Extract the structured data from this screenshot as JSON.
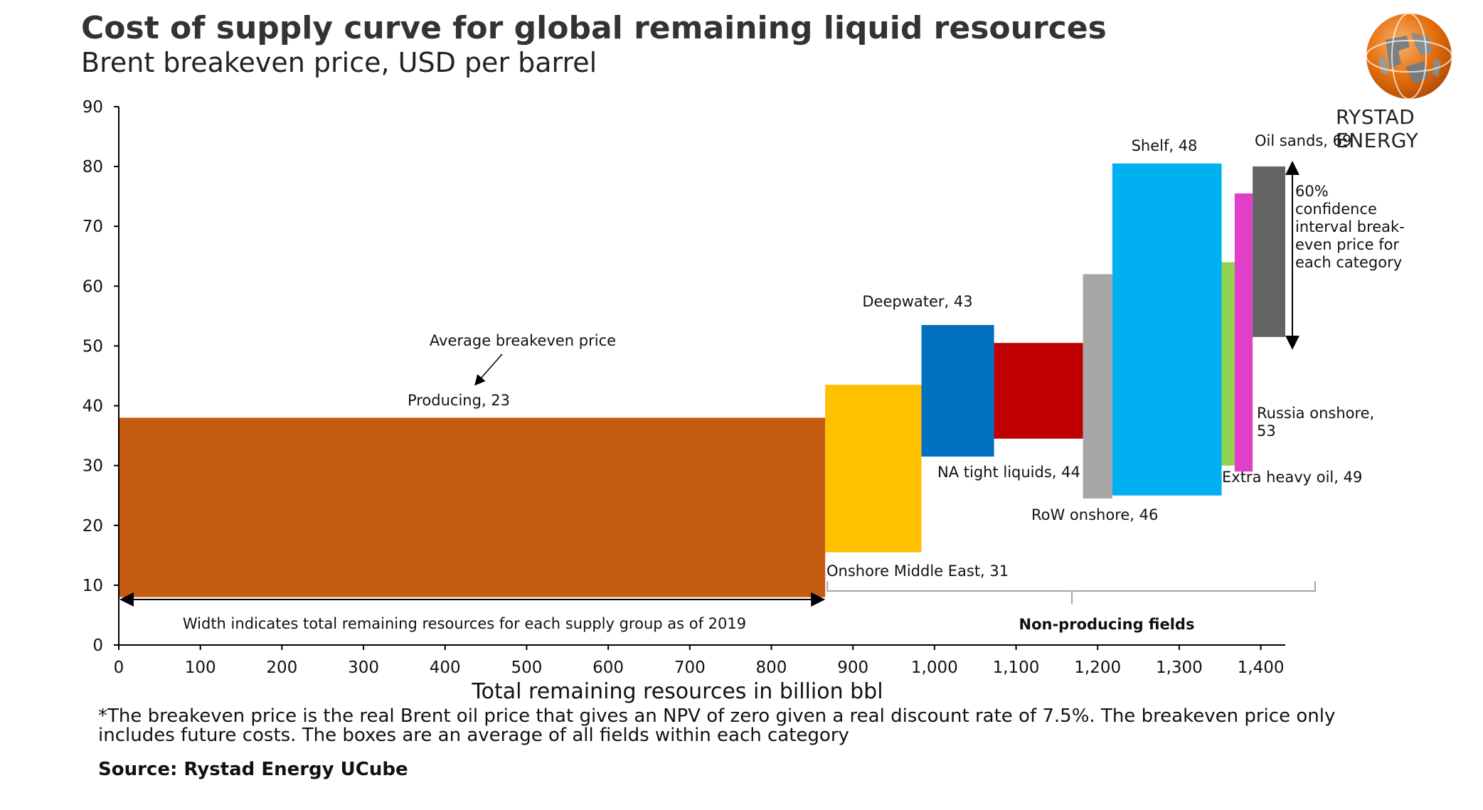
{
  "header": {
    "title": "Cost of supply curve for global remaining liquid resources",
    "subtitle": "Brent breakeven price, USD per barrel",
    "brand": "RYSTAD ENERGY"
  },
  "chart_data": {
    "type": "bar",
    "title": "Cost of supply curve for global remaining liquid resources",
    "subtitle": "Brent breakeven price, USD per barrel",
    "xlabel": "Total remaining resources in billion bbl",
    "ylabel": "",
    "xlim": [
      0,
      1430
    ],
    "ylim": [
      0,
      90
    ],
    "x_ticks": [
      "0",
      "100",
      "200",
      "300",
      "400",
      "500",
      "600",
      "700",
      "800",
      "900",
      "1,000",
      "1,100",
      "1,200",
      "1,300",
      "1,400"
    ],
    "y_ticks": [
      "0",
      "10",
      "20",
      "30",
      "40",
      "50",
      "60",
      "70",
      "80",
      "90"
    ],
    "boxes": [
      {
        "label": "Producing, 23",
        "x0": 0,
        "x1": 866,
        "low": 8,
        "high": 38,
        "color": "#C55A11"
      },
      {
        "label": "Onshore Middle East, 31",
        "x0": 866,
        "x1": 984,
        "low": 15.5,
        "high": 43.5,
        "color": "#FFC000"
      },
      {
        "label": "Deepwater, 43",
        "x0": 984,
        "x1": 1073,
        "low": 31.5,
        "high": 53.5,
        "color": "#0070C0"
      },
      {
        "label": "NA tight liquids, 44",
        "x0": 1073,
        "x1": 1182,
        "low": 34.5,
        "high": 50.5,
        "color": "#C00000"
      },
      {
        "label": "RoW onshore, 46",
        "x0": 1182,
        "x1": 1218,
        "low": 24.5,
        "high": 62,
        "color": "#A6A6A6"
      },
      {
        "label": "Shelf, 48",
        "x0": 1218,
        "x1": 1352,
        "low": 25,
        "high": 80.5,
        "color": "#00B0F0"
      },
      {
        "label": "Extra heavy oil, 49",
        "x0": 1352,
        "x1": 1368,
        "low": 30,
        "high": 64,
        "color": "#92D050"
      },
      {
        "label": "Russia onshore, 53",
        "x0": 1368,
        "x1": 1390,
        "low": 29,
        "high": 75.5,
        "color": "#E040C8"
      },
      {
        "label": "Oil sands, 69",
        "x0": 1390,
        "x1": 1430,
        "low": 51.5,
        "high": 80,
        "color": "#636363"
      }
    ],
    "annotations": {
      "average": "Average breakeven price",
      "width_note": "Width indicates total remaining resources for each supply group as of 2019",
      "non_producing": "Non-producing fields",
      "confidence": [
        "60%",
        "confidence",
        "interval break-",
        "even price for",
        "each category"
      ]
    },
    "legend": "none",
    "grid": false
  },
  "footer": {
    "footnote": "*The breakeven price is the real Brent oil price that gives an NPV of zero given a real discount rate of 7.5%. The breakeven price only includes future costs. The boxes are an average of all fields within each category",
    "source": "Source: Rystad Energy UCube"
  },
  "colors": {
    "accent": "#E36C0A",
    "axis": "#000000"
  },
  "logo_icon": "globe-icon"
}
